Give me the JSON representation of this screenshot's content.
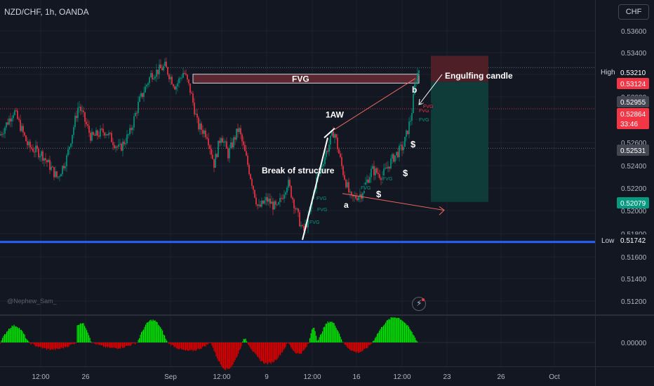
{
  "header": {
    "symbol_title": "NZD/CHF, 1h, OANDA"
  },
  "watermark": {
    "author": "@Nephew_Sam_"
  },
  "currency_button": {
    "label": "CHF"
  },
  "icons": {
    "replay": "lightning-icon"
  },
  "colors": {
    "background": "#131722",
    "bull": "#089981",
    "bear": "#f23645",
    "low_line": "#2962ff",
    "fvg_fill": "#5b2730",
    "target_box": "#0f3b39",
    "stop_box": "#4e1f26",
    "hist_bull": "#00e600",
    "hist_bear": "#e00000"
  },
  "chart_data": {
    "type": "candlestick",
    "symbol": "NZD/CHF",
    "timeframe": "1h",
    "broker": "OANDA",
    "ylim": [
      0.5112,
      0.5378
    ],
    "y_ticks": [
      "0.53600",
      "0.53400",
      "0.53200",
      "0.53000",
      "0.52800",
      "0.52600",
      "0.52400",
      "0.52200",
      "0.52000",
      "0.51800",
      "0.51600",
      "0.51400",
      "0.51200"
    ],
    "x_ticks": [
      "12:00",
      "26",
      "Sep",
      "12:00",
      "9",
      "12:00",
      "16",
      "12:00",
      "23",
      "26",
      "Oct"
    ],
    "price_path": [
      [
        0,
        0.5264
      ],
      [
        20,
        0.5285
      ],
      [
        40,
        0.5255
      ],
      [
        60,
        0.5248
      ],
      [
        82,
        0.5228
      ],
      [
        95,
        0.5245
      ],
      [
        112,
        0.529
      ],
      [
        130,
        0.5262
      ],
      [
        150,
        0.5268
      ],
      [
        170,
        0.5252
      ],
      [
        185,
        0.5266
      ],
      [
        198,
        0.5292
      ],
      [
        215,
        0.5315
      ],
      [
        235,
        0.5322
      ],
      [
        250,
        0.5305
      ],
      [
        262,
        0.5318
      ],
      [
        272,
        0.53
      ],
      [
        282,
        0.5272
      ],
      [
        295,
        0.5265
      ],
      [
        305,
        0.524
      ],
      [
        315,
        0.5265
      ],
      [
        325,
        0.5248
      ],
      [
        340,
        0.527
      ],
      [
        352,
        0.5242
      ],
      [
        368,
        0.5202
      ],
      [
        380,
        0.521
      ],
      [
        395,
        0.5202
      ],
      [
        410,
        0.5225
      ],
      [
        425,
        0.5195
      ],
      [
        432,
        0.5182
      ],
      [
        440,
        0.5195
      ],
      [
        450,
        0.5225
      ],
      [
        462,
        0.5245
      ],
      [
        476,
        0.5268
      ],
      [
        488,
        0.5235
      ],
      [
        500,
        0.521
      ],
      [
        515,
        0.5215
      ],
      [
        530,
        0.5235
      ],
      [
        545,
        0.523
      ],
      [
        560,
        0.5245
      ],
      [
        575,
        0.5255
      ],
      [
        586,
        0.528
      ],
      [
        592,
        0.531
      ],
      [
        597,
        0.532
      ],
      [
        600,
        0.53
      ]
    ],
    "price_labels": [
      {
        "name": "high",
        "title": "High",
        "value": "0.53210",
        "y": 0.5321
      },
      {
        "name": "bid",
        "value": "0.53124",
        "y": 0.53124
      },
      {
        "name": "level-1",
        "value": "0.52955",
        "y": 0.52955
      },
      {
        "name": "last",
        "value": "0.52864",
        "y": 0.52864,
        "countdown": "33:46"
      },
      {
        "name": "level-2",
        "value": "0.52531",
        "y": 0.52531
      },
      {
        "name": "target",
        "value": "0.52079",
        "y": 0.52079
      },
      {
        "name": "low",
        "title": "Low",
        "value": "0.51742",
        "y": 0.51742
      }
    ],
    "annotations": {
      "fvg_label": "FVG",
      "engulfing": "Engulfing candle",
      "wave": "1AW",
      "bos": "Break of structure",
      "point_a": "a",
      "point_b": "b",
      "dollar": "$",
      "fvg_tag": "FVG"
    },
    "oscillator": {
      "zero_label": "0.00000"
    }
  }
}
